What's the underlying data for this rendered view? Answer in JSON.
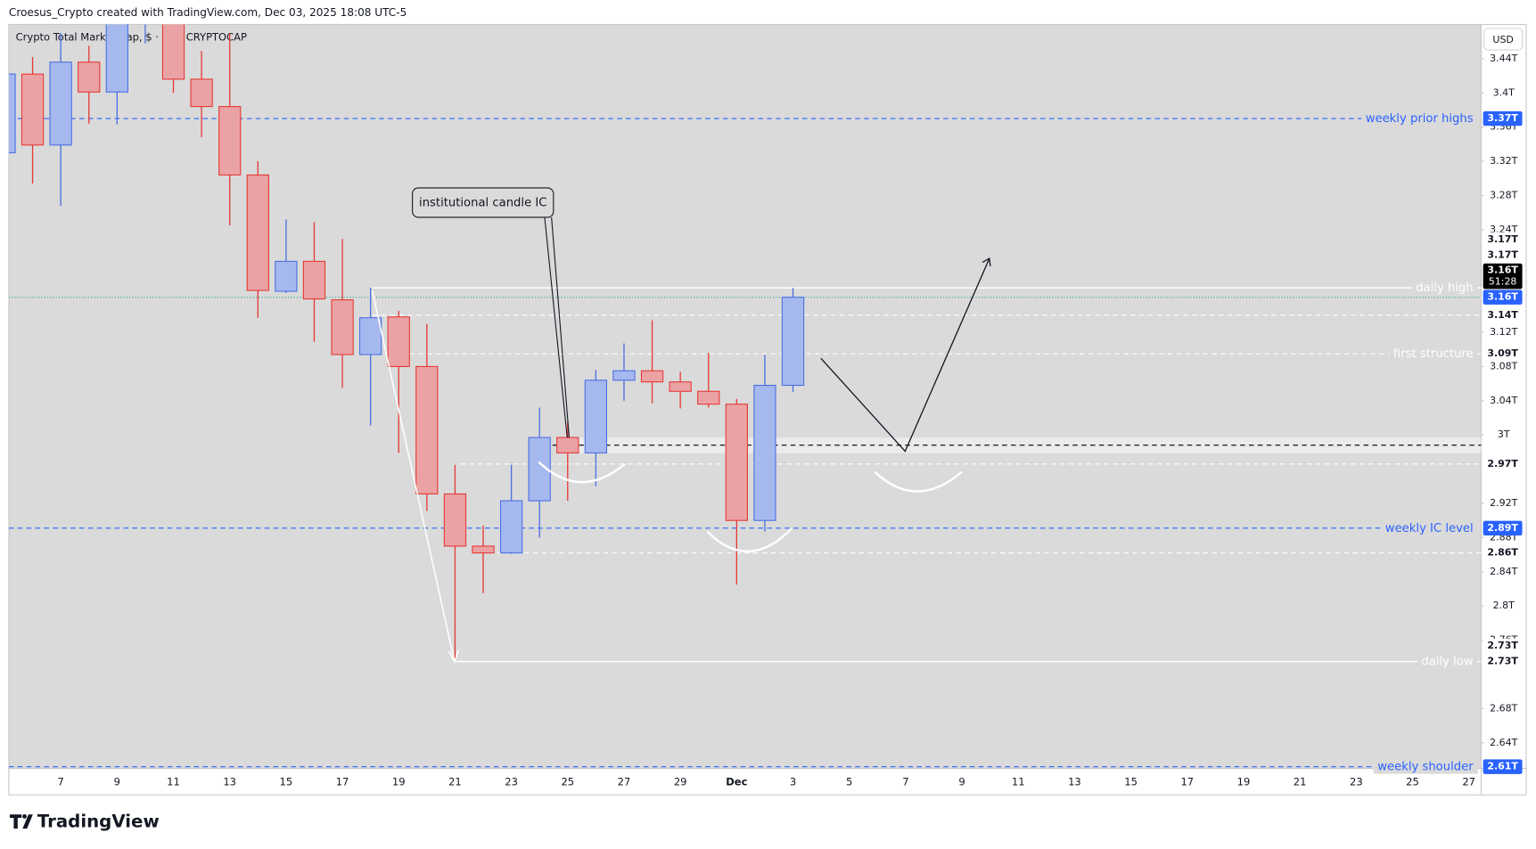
{
  "page": {
    "credit": "Croesus_Crypto created with TradingView.com, Dec 03, 2025 18:08 UTC-5",
    "brand": "TradingView",
    "currency": "USD"
  },
  "chart_data": {
    "type": "candlestick",
    "title": "Crypto Total Market Cap, $ · 1D · CRYPTOCAP",
    "categories": [
      null,
      null,
      "7",
      null,
      "9",
      null,
      "11",
      null,
      "13",
      null,
      "15",
      null,
      "17",
      null,
      "19",
      null,
      "21",
      null,
      "23",
      null,
      "25",
      null,
      "27",
      null,
      "29",
      null,
      "Dec",
      null,
      "3",
      null,
      "5",
      null,
      "7",
      null,
      "9",
      null,
      "11",
      null,
      "13",
      null,
      "15",
      null,
      "17",
      null,
      "19",
      null,
      "21",
      null,
      "23",
      null,
      "25",
      null,
      "27"
    ],
    "open": [
      3.33,
      3.422,
      3.339,
      3.436,
      3.401,
      3.52,
      3.54,
      3.416,
      3.384,
      3.304,
      3.168,
      3.203,
      3.158,
      3.094,
      3.138,
      3.08,
      2.931,
      2.87,
      2.862,
      2.923,
      2.997,
      2.979,
      3.064,
      3.075,
      3.062,
      3.051,
      3.036,
      2.9,
      3.058,
      null,
      null,
      null,
      null,
      null,
      null,
      null,
      null,
      null,
      null,
      null,
      null,
      null,
      null,
      null,
      null,
      null,
      null,
      null,
      null,
      null,
      null,
      null,
      null
    ],
    "high": [
      3.43,
      3.442,
      3.47,
      3.455,
      3.52,
      3.56,
      3.56,
      3.449,
      3.47,
      3.32,
      3.252,
      3.249,
      3.229,
      3.172,
      3.145,
      3.13,
      2.965,
      2.894,
      2.965,
      3.032,
      3.015,
      3.076,
      3.107,
      3.134,
      3.074,
      3.096,
      3.042,
      3.094,
      3.172,
      null,
      null,
      null,
      null,
      null,
      null,
      null,
      null,
      null,
      null,
      null,
      null,
      null,
      null,
      null,
      null,
      null,
      null,
      null,
      null,
      null,
      null,
      null,
      null
    ],
    "low": [
      3.327,
      3.294,
      3.268,
      3.364,
      3.363,
      3.458,
      3.4,
      3.348,
      3.245,
      3.137,
      3.166,
      3.109,
      3.055,
      3.011,
      2.979,
      2.911,
      2.735,
      2.815,
      2.861,
      2.88,
      2.923,
      2.94,
      3.04,
      3.037,
      3.031,
      3.032,
      2.825,
      2.887,
      3.05,
      null,
      null,
      null,
      null,
      null,
      null,
      null,
      null,
      null,
      null,
      null,
      null,
      null,
      null,
      null,
      null,
      null,
      null,
      null,
      null,
      null,
      null,
      null,
      null
    ],
    "close": [
      3.422,
      3.339,
      3.436,
      3.401,
      3.5,
      3.54,
      3.416,
      3.384,
      3.304,
      3.169,
      3.203,
      3.159,
      3.094,
      3.137,
      3.08,
      2.931,
      2.87,
      2.862,
      2.923,
      2.997,
      2.979,
      3.064,
      3.075,
      3.062,
      3.051,
      3.036,
      2.9,
      3.058,
      3.161,
      null,
      null,
      null,
      null,
      null,
      null,
      null,
      null,
      null,
      null,
      null,
      null,
      null,
      null,
      null,
      null,
      null,
      null,
      null,
      null,
      null,
      null,
      null,
      null
    ],
    "up_color": "#4a6fe3",
    "up_fill": "#a6b9ee",
    "down_color": "#e53935",
    "down_fill": "#eba2a4",
    "ylim": [
      2.61,
      3.48
    ],
    "yticks": [
      {
        "value": 3.44,
        "label": "3.44T"
      },
      {
        "value": 3.4,
        "label": "3.4T"
      },
      {
        "value": 3.36,
        "label": "3.36T"
      },
      {
        "value": 3.32,
        "label": "3.32T"
      },
      {
        "value": 3.28,
        "label": "3.28T"
      },
      {
        "value": 3.24,
        "label": "3.24T"
      },
      {
        "value": 3.12,
        "label": "3.12T"
      },
      {
        "value": 3.08,
        "label": "3.08T"
      },
      {
        "value": 3.04,
        "label": "3.04T"
      },
      {
        "value": 3,
        "label": "3T"
      },
      {
        "value": 2.92,
        "label": "2.92T"
      },
      {
        "value": 2.88,
        "label": "2.88T"
      },
      {
        "value": 2.84,
        "label": "2.84T"
      },
      {
        "value": 2.8,
        "label": "2.8T"
      },
      {
        "value": 2.76,
        "label": "2.76T"
      },
      {
        "value": 2.68,
        "label": "2.68T"
      },
      {
        "value": 2.64,
        "label": "2.64T"
      }
    ],
    "grid": false,
    "levels": [
      {
        "name": "weekly prior highs",
        "value": 3.37,
        "color": "#2962ff",
        "style": "dashed"
      },
      {
        "name": "daily high",
        "value": 3.172,
        "color": "#ffffff",
        "style": "solid"
      },
      {
        "value": 3.14,
        "color": "#ffffff",
        "style": "dashed"
      },
      {
        "name": "first structure",
        "value": 3.095,
        "color": "#ffffff",
        "style": "dashed"
      },
      {
        "value": 2.988,
        "color": "#000000",
        "style": "dashed"
      },
      {
        "value": 2.966,
        "color": "#ffffff",
        "style": "dashed"
      },
      {
        "name": "weekly IC level",
        "value": 2.891,
        "color": "#2962ff",
        "style": "dashed"
      },
      {
        "value": 2.862,
        "color": "#ffffff",
        "style": "dashed"
      },
      {
        "name": "daily low",
        "value": 2.735,
        "color": "#ffffff",
        "style": "solid"
      },
      {
        "name": "weekly shoulder",
        "value": 2.612,
        "color": "#2962ff",
        "style": "dashed"
      }
    ],
    "price_tags": [
      {
        "value": 2.612,
        "label": "2.61T",
        "color": "#2962ff"
      },
      {
        "value": 2.735,
        "label": "2.73T",
        "color": "#ffffff"
      },
      {
        "value": 2.735,
        "label": "2.73T",
        "color": "#ffffff"
      },
      {
        "value": 2.862,
        "label": "2.86T",
        "color": "#ffffff"
      },
      {
        "value": 2.891,
        "label": "2.89T",
        "color": "#2962ff"
      },
      {
        "value": 2.966,
        "label": "2.97T",
        "color": "#ffffff"
      },
      {
        "value": 3.095,
        "label": "3.09T",
        "color": "#ffffff"
      },
      {
        "value": 3.14,
        "label": "3.14T",
        "color": "#ffffff"
      },
      {
        "value": 3.161,
        "label": "3.16T",
        "color": "#2962ff"
      },
      {
        "value": 3.161,
        "label": "3.16T",
        "countdown": "51:28",
        "color": "#000000"
      },
      {
        "value": 3.172,
        "label": "3.17T",
        "color": "#ffffff"
      },
      {
        "value": 3.172,
        "label": "3.17T",
        "color": "#ffffff"
      },
      {
        "value": 3.37,
        "label": "3.37T",
        "color": "#2962ff"
      }
    ],
    "annotations": [
      {
        "text": "institutional candle IC"
      }
    ]
  }
}
